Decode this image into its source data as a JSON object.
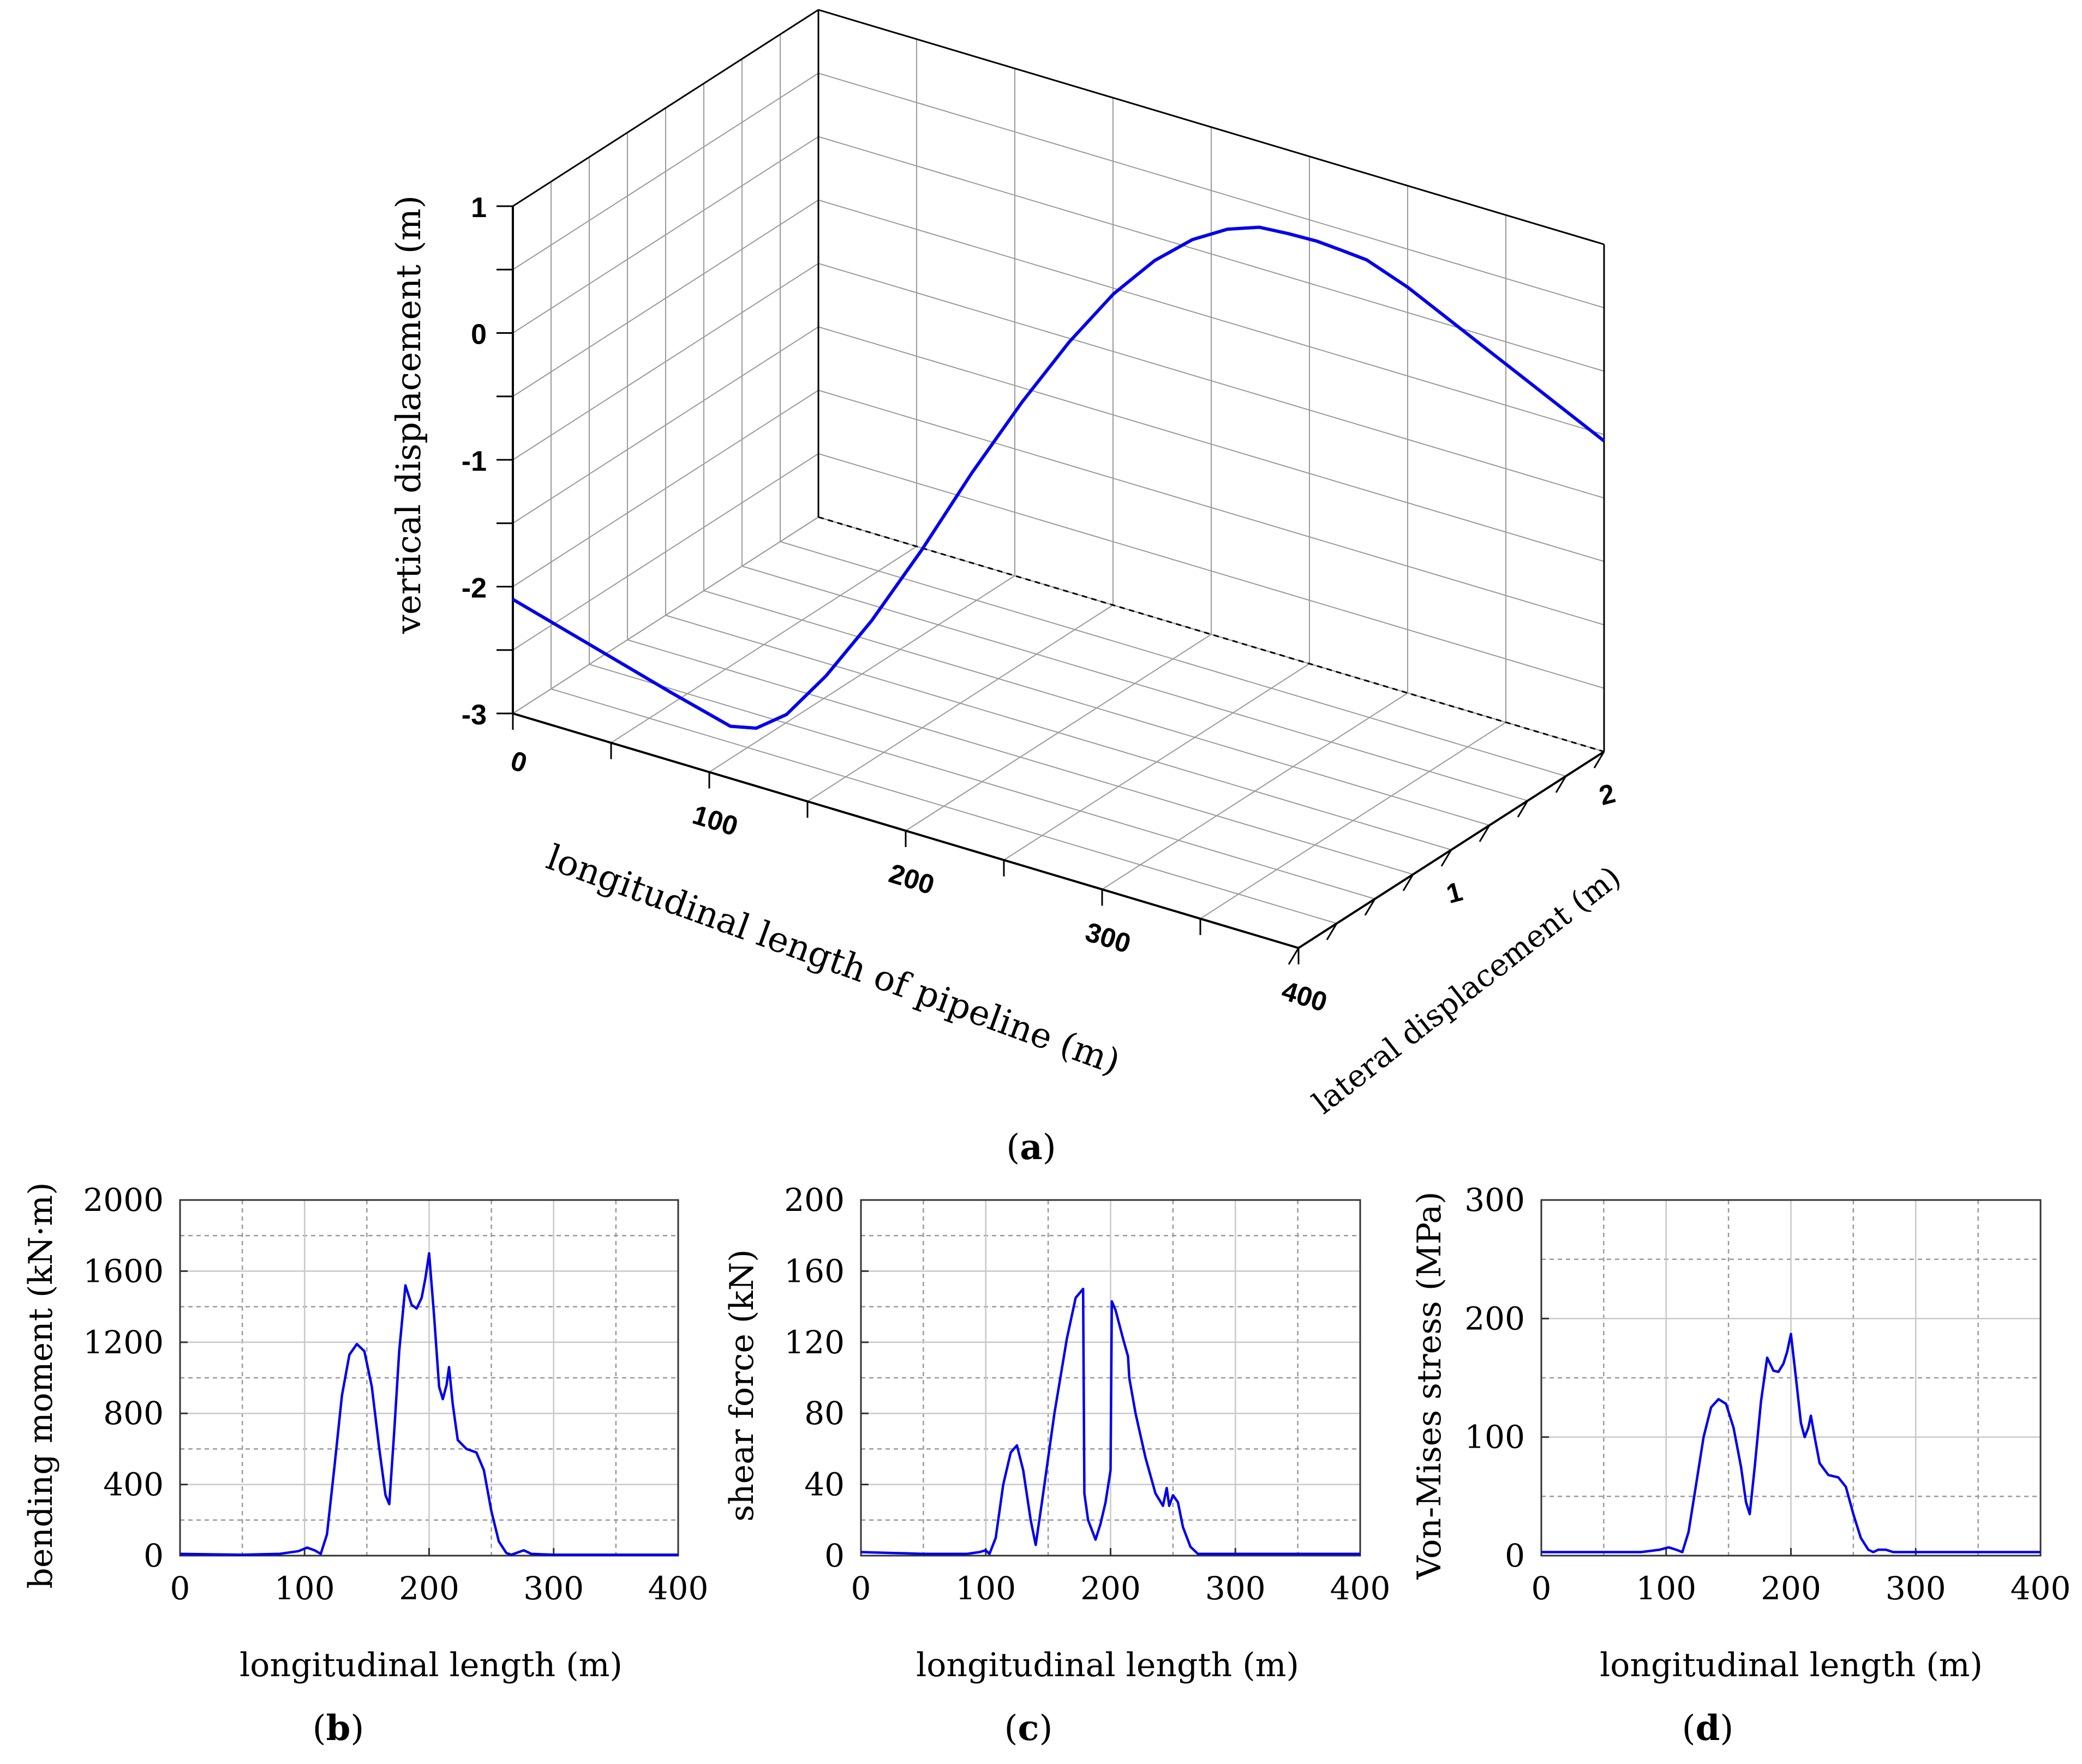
{
  "figure_labels": [
    {
      "prefix": "(",
      "letter": "a",
      "suffix": ")"
    },
    {
      "prefix": "(",
      "letter": "b",
      "suffix": ")"
    },
    {
      "prefix": "(",
      "letter": "c",
      "suffix": ")"
    },
    {
      "prefix": "(",
      "letter": "d",
      "suffix": ")"
    }
  ],
  "colors": {
    "line": "#0000ee",
    "grid": "#9a9a9a",
    "axis": "#000000"
  },
  "chart_data": [
    {
      "id": "a",
      "type": "line",
      "subtype": "3d-line",
      "title": "",
      "xlabel": "longitudinal length of pipeline (m)",
      "ylabel": "lateral displacement (m)",
      "zlabel": "vertical displacement (m)",
      "x_ticks": [
        "0",
        "100",
        "200",
        "300",
        "400"
      ],
      "y_ticks": [
        "1",
        "2"
      ],
      "z_ticks": [
        "1",
        "0",
        "-1",
        "-2",
        "-3"
      ],
      "xlim": [
        0,
        400
      ],
      "ylim": [
        0,
        2
      ],
      "zlim": [
        -3,
        1
      ],
      "grid": true,
      "series": [
        {
          "name": "pipeline",
          "x": [
            0,
            40,
            80,
            110,
            120,
            130,
            140,
            150,
            160,
            170,
            180,
            190,
            200,
            210,
            220,
            230,
            240,
            250,
            260,
            270,
            280,
            300,
            320,
            340,
            360,
            400
          ],
          "y": [
            0,
            0,
            0,
            0.01,
            0.05,
            0.12,
            0.25,
            0.42,
            0.62,
            0.82,
            1.02,
            1.2,
            1.36,
            1.5,
            1.62,
            1.72,
            1.8,
            1.86,
            1.92,
            1.96,
            1.99,
            2,
            2,
            2,
            2,
            2
          ],
          "z": [
            -2.1,
            -2.28,
            -2.46,
            -2.6,
            -2.6,
            -2.5,
            -2.25,
            -1.9,
            -1.45,
            -0.95,
            -0.5,
            -0.12,
            0.18,
            0.38,
            0.5,
            0.55,
            0.55,
            0.5,
            0.44,
            0.38,
            0.33,
            0.2,
            0.05,
            -0.1,
            -0.25,
            -0.55
          ]
        }
      ]
    },
    {
      "id": "b",
      "type": "line",
      "title": "",
      "xlabel": "longitudinal length (m)",
      "ylabel": "bending moment (kN·m)",
      "x_ticks": [
        "0",
        "100",
        "200",
        "300",
        "400"
      ],
      "y_ticks": [
        "0",
        "400",
        "800",
        "1200",
        "1600",
        "2000"
      ],
      "xlim": [
        0,
        400
      ],
      "ylim": [
        0,
        2000
      ],
      "grid": true,
      "series": [
        {
          "name": "bending moment",
          "x": [
            0,
            50,
            80,
            95,
            102,
            108,
            113,
            118,
            124,
            130,
            136,
            142,
            148,
            154,
            160,
            165,
            168,
            172,
            176,
            181,
            186,
            190,
            194,
            197,
            200,
            204,
            208,
            211,
            214,
            216,
            219,
            223,
            230,
            238,
            244,
            250,
            256,
            262,
            266,
            270,
            276,
            282,
            300,
            340,
            400
          ],
          "y": [
            10,
            5,
            10,
            25,
            45,
            30,
            10,
            120,
            500,
            900,
            1130,
            1190,
            1150,
            950,
            600,
            340,
            290,
            700,
            1150,
            1520,
            1410,
            1390,
            1450,
            1560,
            1700,
            1350,
            950,
            880,
            960,
            1060,
            850,
            650,
            600,
            580,
            480,
            250,
            80,
            15,
            5,
            15,
            30,
            10,
            5,
            5,
            5
          ]
        }
      ]
    },
    {
      "id": "c",
      "type": "line",
      "title": "",
      "xlabel": "longitudinal length (m)",
      "ylabel": "shear force (kN)",
      "x_ticks": [
        "0",
        "100",
        "200",
        "300",
        "400"
      ],
      "y_ticks": [
        "0",
        "40",
        "80",
        "120",
        "160",
        "200"
      ],
      "xlim": [
        0,
        400
      ],
      "ylim": [
        0,
        200
      ],
      "grid": true,
      "series": [
        {
          "name": "shear force",
          "x": [
            0,
            50,
            85,
            95,
            100,
            103,
            108,
            114,
            120,
            125,
            130,
            136,
            140,
            145,
            155,
            165,
            172,
            178,
            179,
            182,
            188,
            192,
            196,
            200,
            201,
            204,
            210,
            214,
            215,
            220,
            228,
            236,
            242,
            245,
            247,
            250,
            254,
            258,
            264,
            270,
            276,
            300,
            400
          ],
          "y": [
            2,
            1,
            1,
            2,
            3,
            1,
            10,
            40,
            58,
            62,
            48,
            20,
            6,
            30,
            80,
            122,
            145,
            150,
            35,
            20,
            9,
            18,
            30,
            48,
            143,
            138,
            122,
            112,
            100,
            80,
            55,
            35,
            28,
            38,
            28,
            34,
            30,
            16,
            5,
            1,
            1,
            1,
            1
          ]
        }
      ]
    },
    {
      "id": "d",
      "type": "line",
      "title": "",
      "xlabel": "longitudinal length (m)",
      "ylabel": "Von-Mises stress (MPa)",
      "x_ticks": [
        "0",
        "100",
        "200",
        "300",
        "400"
      ],
      "y_ticks": [
        "0",
        "100",
        "200",
        "300"
      ],
      "xlim": [
        0,
        400
      ],
      "ylim": [
        0,
        300
      ],
      "grid": true,
      "series": [
        {
          "name": "Von-Mises stress",
          "x": [
            0,
            50,
            80,
            95,
            102,
            108,
            113,
            118,
            124,
            130,
            136,
            142,
            148,
            154,
            160,
            164,
            167,
            171,
            176,
            181,
            186,
            190,
            194,
            197,
            200,
            204,
            208,
            211,
            214,
            216,
            219,
            223,
            230,
            238,
            244,
            250,
            256,
            262,
            266,
            270,
            276,
            282,
            300,
            340,
            400
          ],
          "y": [
            3,
            3,
            3,
            5,
            7,
            5,
            3,
            20,
            60,
            100,
            125,
            132,
            128,
            108,
            75,
            45,
            35,
            75,
            130,
            167,
            156,
            155,
            162,
            172,
            187,
            150,
            112,
            100,
            108,
            118,
            100,
            78,
            68,
            66,
            58,
            35,
            15,
            5,
            3,
            5,
            5,
            3,
            3,
            3,
            3
          ]
        }
      ]
    }
  ]
}
